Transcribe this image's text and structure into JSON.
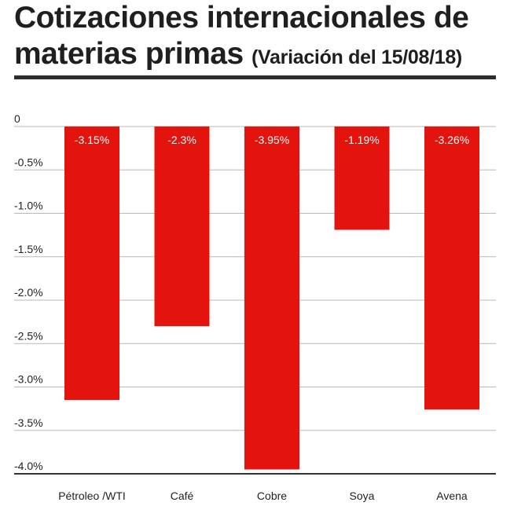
{
  "header": {
    "title_line1": "Cotizaciones internacionales de",
    "title_line2": "materias primas",
    "subtitle": "(Variación del 15/08/18)"
  },
  "colors": {
    "bar": "#e3140e",
    "grid": "#b8b8b8",
    "axis": "#333333",
    "rule": "#2d2d2d"
  },
  "chart_data": {
    "type": "bar",
    "title": "Cotizaciones internacionales de materias primas",
    "subtitle": "(Variación del 15/08/18)",
    "categories": [
      "Pétroleo /WTI",
      "Café",
      "Cobre",
      "Soya",
      "Avena"
    ],
    "values": [
      -3.15,
      -2.3,
      -3.95,
      -1.19,
      -3.26
    ],
    "data_labels": [
      "-3.15%",
      "-2.3%",
      "-3.95%",
      "-1.19%",
      "-3.26%"
    ],
    "ylim": [
      -4.0,
      0
    ],
    "yticks": [
      0,
      -0.5,
      -1.0,
      -1.5,
      -2.0,
      -2.5,
      -3.0,
      -3.5,
      -4.0
    ],
    "ytick_labels": [
      "0",
      "-0.5%",
      "-1.0%",
      "-1.5%",
      "-2.0%",
      "-2.5%",
      "-3.0%",
      "-3.5%",
      "-4.0%"
    ],
    "xlabel": "",
    "ylabel": "",
    "grid": true,
    "legend": "none"
  }
}
